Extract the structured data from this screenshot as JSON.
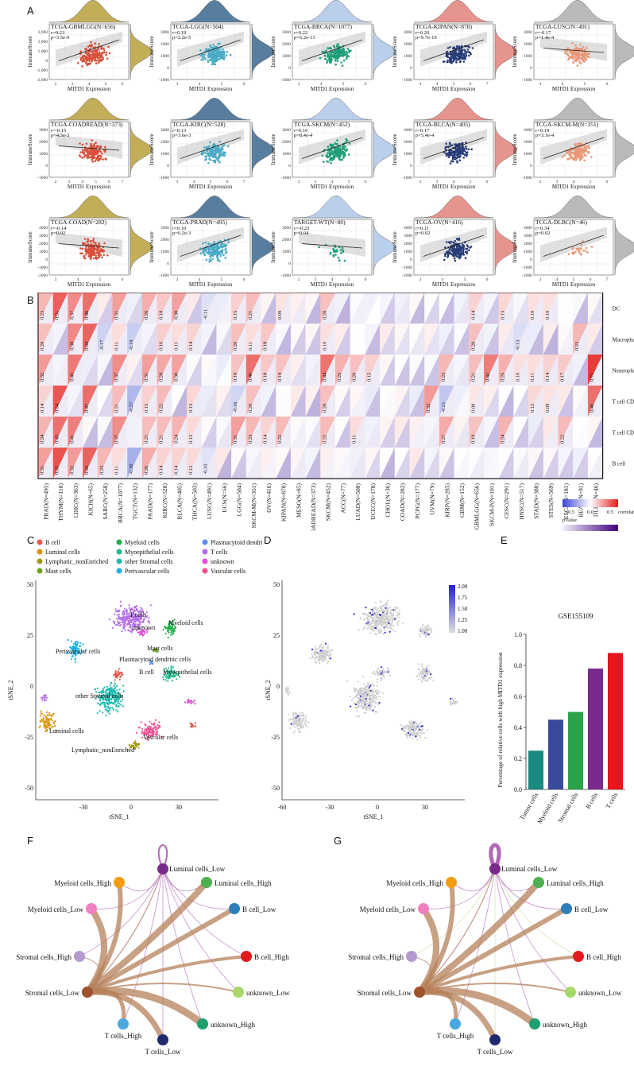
{
  "figure": {
    "panel_labels": [
      "A",
      "B",
      "C",
      "D",
      "E",
      "F",
      "G"
    ]
  },
  "panelA": {
    "ylabel": "ImmuneScore",
    "xlabel": "MITD1 Expression",
    "plots": [
      {
        "title": "TCGA-GBMLGG(N=656)",
        "r": "r=0.23",
        "p": "p=3.5e-9",
        "color": "#d9503c",
        "side": "#b39a2f",
        "yticks": [
          "3,000",
          "2,000",
          "1,000",
          "0",
          "-1,000",
          "-2,000"
        ],
        "xticks": [
          "2",
          "3",
          "4",
          "5",
          "6"
        ]
      },
      {
        "title": "TCGA-LGG(N=504)",
        "r": "r=0.19",
        "p": "p=2.2e-5",
        "color": "#49aac6",
        "side": "#2f5f88",
        "yticks": [
          "3000",
          "2000",
          "1000",
          "0",
          "-1000"
        ],
        "xticks": [
          "3",
          "4",
          "5",
          "6"
        ]
      },
      {
        "title": "TCGA-BRCA(N=1077)",
        "r": "r=0.22",
        "p": "p=6.2e-13",
        "color": "#1e9e7a",
        "side": "#a9c4e8",
        "yticks": [
          "3000",
          "2000",
          "1000",
          "0",
          "-1000"
        ],
        "xticks": [
          "3",
          "4",
          "5",
          "6"
        ]
      },
      {
        "title": "TCGA-KIPAN(N=878)",
        "r": "r=0.20",
        "p": "p=9.7e-10",
        "color": "#283c78",
        "side": "#e07a72",
        "yticks": [
          "3000",
          "2000",
          "1000",
          "0",
          "-1000"
        ],
        "xticks": [
          "3",
          "4",
          "5",
          "6",
          "7"
        ]
      },
      {
        "title": "TCGA-LUSC(N=491)",
        "r": "r=-0.17",
        "p": "p=1.4e-4",
        "color": "#e89878",
        "side": "#aaaaaa",
        "yticks": [
          "3000",
          "2000",
          "1000",
          "0",
          "-1000"
        ],
        "xticks": [
          "3",
          "4",
          "5",
          "6"
        ]
      },
      {
        "title": "TCGA-COADREAD(N=373)",
        "r": "r=-0.15",
        "p": "p=4.5e-3",
        "color": "#d9503c",
        "side": "#b39a2f",
        "yticks": [
          "3000",
          "2000",
          "1000",
          "0",
          "-1000"
        ],
        "xticks": [
          "2",
          "3",
          "4",
          "5",
          "6",
          "7"
        ]
      },
      {
        "title": "TCGA-KIRC(N=528)",
        "r": "r=0.13",
        "p": "p=3.6e-3",
        "color": "#49aac6",
        "side": "#2f5f88",
        "yticks": [
          "3000",
          "2000",
          "1000",
          "0",
          "-1000"
        ],
        "xticks": [
          "3",
          "4",
          "5",
          "6",
          "7"
        ]
      },
      {
        "title": "TCGA-SKCM(N=452)",
        "r": "r=0.16",
        "p": "p=8.4e-4",
        "color": "#1e9e7a",
        "side": "#a9c4e8",
        "yticks": [
          "3000",
          "2000",
          "1000",
          "0",
          "-1000"
        ],
        "xticks": [
          "2",
          "3",
          "4",
          "5",
          "6"
        ]
      },
      {
        "title": "TCGA-BLCA(N=405)",
        "r": "r=0.17",
        "p": "p=5.4e-4",
        "color": "#283c78",
        "side": "#e07a72",
        "yticks": [
          "3000",
          "2000",
          "1000",
          "0",
          "-1000"
        ],
        "xticks": [
          "2",
          "3",
          "4",
          "5",
          "6"
        ]
      },
      {
        "title": "TCGA-SKCM-M(N=351)",
        "r": "r=0.19",
        "p": "p=3.1e-4",
        "color": "#e89878",
        "side": "#aaaaaa",
        "yticks": [
          "3000",
          "2000",
          "1000",
          "0",
          "-1000"
        ],
        "xticks": [
          "2",
          "3",
          "4",
          "5",
          "6"
        ]
      },
      {
        "title": "TCGA-COAD(N=282)",
        "r": "r=-0.14",
        "p": "p=0.02",
        "color": "#d9503c",
        "side": "#b39a2f",
        "yticks": [
          "4000",
          "3000",
          "2000",
          "1000",
          "0",
          "-1000",
          "-2000"
        ],
        "xticks": [
          "3",
          "4",
          "5",
          "6"
        ]
      },
      {
        "title": "TCGA-PRAD(N=495)",
        "r": "r=0.10",
        "p": "p=6.2e-3",
        "color": "#49aac6",
        "side": "#2f5f88",
        "yticks": [
          "3000",
          "2000",
          "1000",
          "0",
          "-1000"
        ],
        "xticks": [
          "3",
          "4",
          "5",
          "6"
        ]
      },
      {
        "title": "TARGET-WT(N=80)",
        "r": "r=-0.23",
        "p": "p=0.04",
        "color": "#1e9e7a",
        "side": "#a9c4e8",
        "yticks": [
          "3000",
          "2000",
          "1000",
          "0",
          "-1000"
        ],
        "xticks": [
          "2",
          "3",
          "4",
          "5",
          "6"
        ]
      },
      {
        "title": "TCGA-OV(N=416)",
        "r": "r=0.11",
        "p": "p=0.02",
        "color": "#283c78",
        "side": "#e07a72",
        "yticks": [
          "4000",
          "3000",
          "2000",
          "1000",
          "0",
          "-1000",
          "-2000"
        ],
        "xticks": [
          "3",
          "4",
          "5",
          "6"
        ]
      },
      {
        "title": "TCGA-DLBC(N=46)",
        "r": "r=0.34",
        "p": "p=0.02",
        "color": "#e89878",
        "side": "#aaaaaa",
        "yticks": [
          "4000",
          "3000",
          "2000",
          "1000",
          "0",
          "-1000",
          "-2000"
        ],
        "xticks": [
          "3",
          "4",
          "5",
          "6",
          "7"
        ]
      }
    ]
  },
  "panelB": {
    "rows": [
      "DC",
      "Macrophage",
      "Neutrophil",
      "T cell CD8",
      "T cell CD4",
      "B cell"
    ],
    "columns": [
      "PRAD(N=495)",
      "THYM(N=118)",
      "LIHC(N=363)",
      "KICH(N=65)",
      "SARC(N=258)",
      "BRCA(N=1077)",
      "TGCT(N=132)",
      "PAAD(N=177)",
      "KIRC(N=528)",
      "BLCA(N=405)",
      "THCA(N=503)",
      "LUSC(N=491)",
      "UCS(N=56)",
      "LGG(N=504)",
      "SKCM-M(N=351)",
      "OV(N=416)",
      "KIPAN(N=878)",
      "MESO(N=85)",
      "COADREAD(N=373)",
      "SKCM(N=452)",
      "ACC(N=77)",
      "LUAD(N=500)",
      "UCEC(N=178)",
      "CHOL(N=36)",
      "COAD(N=282)",
      "PCPG(N=177)",
      "UVM(N=79)",
      "KIRP(N=285)",
      "GBM(N=152)",
      "GBMLGG(N=656)",
      "SKCM-P(N=101)",
      "CESC(N=291)",
      "HNSC(N=517)",
      "STAD(N=388)",
      "STES(N=569)",
      "ESCA(N=181)",
      "READ(N=91)",
      "DLBC(N=46)"
    ],
    "legend": {
      "cc_title": "correlation coefficient",
      "cc_ticks": [
        "-0.5",
        "0.0",
        "0.5"
      ],
      "p_title": "pValue",
      "p_ticks": [
        "0.0",
        "0.5",
        "1.0",
        "1.5",
        "2.0"
      ]
    },
    "cells": [
      [
        "0.23",
        "0.51",
        "0.37",
        "0.46",
        "",
        "0.31",
        "",
        "0.26",
        "0.18",
        "0.30",
        "",
        "-0.11",
        "",
        "0.15",
        "0.21",
        "",
        "0.09",
        "",
        "",
        "0.20",
        "",
        "",
        "",
        "",
        "",
        "",
        "",
        "",
        "",
        "0.14",
        "",
        "0.13",
        "",
        "0.10",
        "0.10",
        "",
        "",
        ""
      ],
      [
        "0.20",
        "",
        "0.38",
        "0.50",
        "-0.17",
        "0.11",
        "-0.19",
        "",
        "0.16",
        "0.11",
        "0.14",
        "",
        "",
        "0.20",
        "0.11",
        "0.18",
        "",
        "",
        "",
        "0.10",
        "",
        "",
        "",
        "",
        "",
        "",
        "",
        "",
        "",
        "0.20",
        "",
        "",
        "-0.13",
        "",
        "",
        "",
        "0.23",
        ""
      ],
      [
        "0.32",
        "",
        "0.43",
        "",
        "",
        "0.37",
        "",
        "0.31",
        "0.28",
        "0.30",
        "",
        "",
        "",
        "0.19",
        "0.46",
        "0.18",
        "0.19",
        "",
        "",
        "0.44",
        "0.25",
        "0.20",
        "0.15",
        "",
        "",
        "",
        "",
        "0.23",
        "",
        "0.21",
        "0.42",
        "0.25",
        "0.10",
        "0.11",
        "0.14",
        "0.17",
        "",
        "0.71"
      ],
      [
        "0.14",
        "0.54",
        "",
        "0.47",
        "",
        "0.21",
        "-0.27",
        "0.15",
        "0.22",
        "",
        "0.13",
        "",
        "",
        "-0.16",
        "0.20",
        "",
        "",
        "",
        "",
        "0.20",
        "",
        "",
        "",
        "",
        "",
        "",
        "0.32",
        "-0.21",
        "",
        "0.08",
        "",
        "",
        "",
        "0.12",
        "0.09",
        "",
        "",
        "0.46"
      ],
      [
        "0.24",
        "0.45",
        "0.41",
        "",
        "",
        "0.37",
        "",
        "0.21",
        "0.21",
        "0.24",
        "0.12",
        "",
        "",
        "0.31",
        "0.23",
        "0.14",
        "0.22",
        "",
        "",
        "0.22",
        "",
        "0.11",
        "",
        "",
        "",
        "",
        "",
        "0.27",
        "",
        "0.19",
        "",
        "0.24",
        "",
        "",
        "",
        "0.22",
        "",
        ""
      ],
      [
        "0.31",
        "0.55",
        "0.32",
        "0.50",
        "0.23",
        "0.11",
        "-0.30",
        "0.26",
        "0.14",
        "0.14",
        "0.12",
        "-0.10",
        "",
        "",
        "",
        "",
        "",
        "",
        "",
        "",
        "",
        "",
        "",
        "",
        "",
        "",
        "",
        "",
        "",
        "",
        "",
        "",
        "",
        "",
        "",
        "",
        "",
        ""
      ]
    ]
  },
  "panelC": {
    "legend": [
      {
        "label": "B cell",
        "color": "#e8574a"
      },
      {
        "label": "Luminal cells",
        "color": "#d9960e"
      },
      {
        "label": "Lymphatic_nonEnriched",
        "color": "#a59a15"
      },
      {
        "label": "Mast cells",
        "color": "#6ea51b"
      },
      {
        "label": "Myeloid cells",
        "color": "#1fae4a"
      },
      {
        "label": "Myoepithelial cells",
        "color": "#1dba8d"
      },
      {
        "label": "other Stromal cells",
        "color": "#1dbab0"
      },
      {
        "label": "Perivascular cells",
        "color": "#1ab2e0"
      },
      {
        "label": "Plasmacytoid dendritic cells",
        "color": "#5b8ee6"
      },
      {
        "label": "T cells",
        "color": "#b46ee8"
      },
      {
        "label": "unknown",
        "color": "#e14fd8"
      },
      {
        "label": "Vascular cells",
        "color": "#ee4f93"
      }
    ],
    "xlabel": "tSNE_1",
    "ylabel": "tSNE_2",
    "xticks": [
      "-30",
      "0",
      "30"
    ],
    "yticks": [
      "50",
      "25",
      "0",
      "-25",
      "-50"
    ],
    "cluster_labels": [
      "T cells",
      "Myeloid cells",
      "unknown",
      "Perivascular cells",
      "Mast cells",
      "Plasmacytoid dendritic cells",
      "B cell",
      "Myoepithelial cells",
      "other Stromal cells",
      "Luminal cells",
      "Vascular cells",
      "Lymphatic_nonEnriched"
    ]
  },
  "panelD": {
    "xlabel": "tSNE_1",
    "ylabel": "tSNE_2",
    "xticks": [
      "-60",
      "-30",
      "0",
      "30"
    ],
    "yticks": [
      "50",
      "25",
      "0",
      "-25",
      "-50"
    ],
    "colorbar": [
      "2.00",
      "1.75",
      "1.50",
      "1.25",
      "1.00"
    ]
  },
  "chart_data": {
    "type": "bar",
    "title": "GSE155109",
    "ylabel": "Percentage of relative cells with high MITD1 expression",
    "categories": [
      "Tumor cells",
      "Myeloid cells",
      "Stromal cells",
      "B cells",
      "T cells"
    ],
    "values": [
      0.25,
      0.45,
      0.5,
      0.78,
      0.88
    ],
    "colors": [
      "#1a8a80",
      "#3a4a9a",
      "#2aa44a",
      "#7a2a8c",
      "#e8141e"
    ],
    "yticks": [
      "0.0",
      "0.2",
      "0.4",
      "0.6",
      "0.8",
      "1.0"
    ],
    "ylim": [
      0,
      1.0
    ]
  },
  "network": {
    "nodes": [
      {
        "label": "Luminal cells_Low",
        "color": "#7a2a8c"
      },
      {
        "label": "Luminal cells_High",
        "color": "#4caf50"
      },
      {
        "label": "B cell_Low",
        "color": "#2c7fb8"
      },
      {
        "label": "B cell_High",
        "color": "#e31a1c"
      },
      {
        "label": "unknown_Low",
        "color": "#a6d96a"
      },
      {
        "label": "unknown_High",
        "color": "#1f9e6e"
      },
      {
        "label": "T cells_Low",
        "color": "#1f2a6e"
      },
      {
        "label": "T cells_High",
        "color": "#4aa8de"
      },
      {
        "label": "Stromal cells_Low",
        "color": "#a0522d"
      },
      {
        "label": "Stromal cells_High",
        "color": "#b39ad0"
      },
      {
        "label": "Myeloid cells_Low",
        "color": "#f07fc0"
      },
      {
        "label": "Myeloid cells_High",
        "color": "#f39c12"
      }
    ]
  }
}
